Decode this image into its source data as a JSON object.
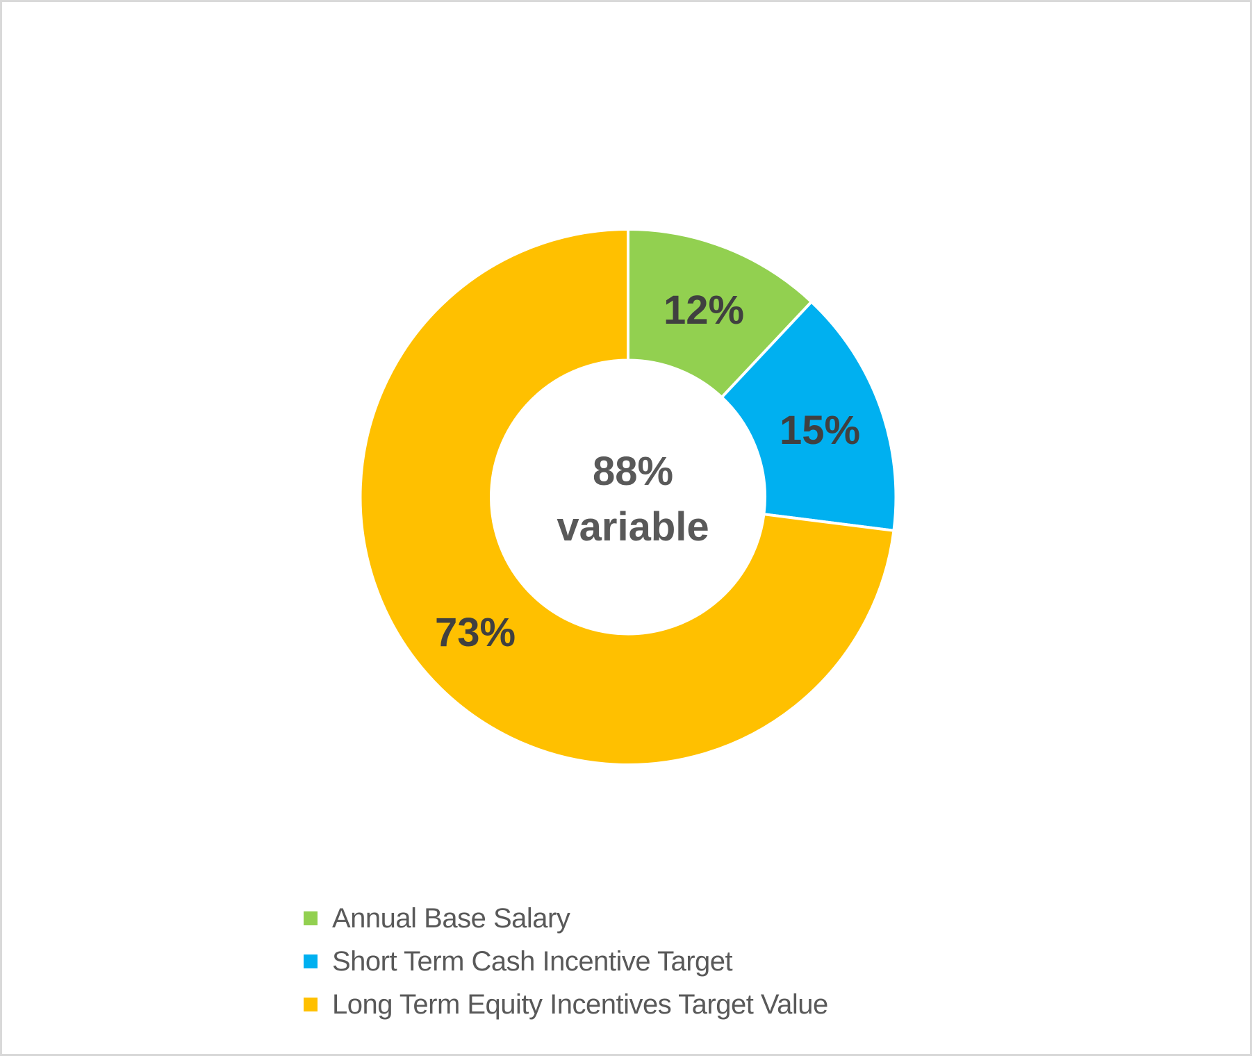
{
  "chart_data": {
    "type": "pie",
    "subtype": "donut",
    "title": "",
    "categories": [
      "Annual Base Salary",
      "Short Term Cash Incentive Target",
      "Long Term Equity Incentives Target Value"
    ],
    "values": [
      12,
      15,
      73
    ],
    "value_labels": [
      "12%",
      "15%",
      "73%"
    ],
    "colors": [
      "#92D050",
      "#00B0F0",
      "#FFC000"
    ],
    "center_label": [
      "88%",
      "variable"
    ],
    "legend_position": "bottom",
    "start_angle_deg": 0,
    "direction": "clockwise"
  },
  "labels": {
    "slice_0": "12%",
    "slice_1": "15%",
    "slice_2": "73%",
    "center_line_1": "88%",
    "center_line_2": "variable"
  },
  "legend": {
    "items": [
      {
        "label": "Annual Base Salary",
        "color": "#92D050"
      },
      {
        "label": "Short Term Cash Incentive Target",
        "color": "#00B0F0"
      },
      {
        "label": "Long Term Equity Incentives Target Value",
        "color": "#FFC000"
      }
    ]
  },
  "style": {
    "border_color": "#D9D9D9",
    "label_color": "#404040",
    "center_text_color": "#595959",
    "legend_text_color": "#595959",
    "separator_color": "#FFFFFF"
  }
}
